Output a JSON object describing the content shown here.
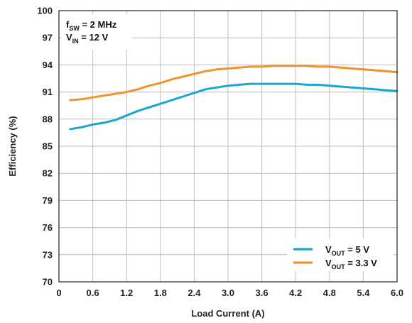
{
  "chart_data": {
    "type": "line",
    "xlabel": "Load Current (A)",
    "ylabel": "Efficiency (%)",
    "xlim": [
      0,
      6.0
    ],
    "ylim": [
      70,
      100
    ],
    "x_ticks": [
      "0",
      "0.6",
      "1.2",
      "1.8",
      "2.4",
      "3.0",
      "3.6",
      "4.2",
      "4.8",
      "5.4",
      "6.0"
    ],
    "y_ticks": [
      "70",
      "73",
      "76",
      "79",
      "82",
      "85",
      "88",
      "91",
      "94",
      "97",
      "100"
    ],
    "grid": true,
    "legend_position": "bottom-right",
    "annotations": {
      "fsw": {
        "main": "f",
        "sub": "SW",
        "rest": " = 2 MHz"
      },
      "vin": {
        "main": "V",
        "sub": "IN",
        "rest": " = 12 V"
      }
    },
    "series": [
      {
        "name": "V_OUT = 5 V",
        "legend": {
          "main": "V",
          "sub": "OUT",
          "rest": " = 5 V"
        },
        "color": "#1aa6d3",
        "x": [
          0.2,
          0.4,
          0.6,
          0.8,
          1.0,
          1.2,
          1.4,
          1.6,
          1.8,
          2.0,
          2.2,
          2.4,
          2.6,
          2.8,
          3.0,
          3.2,
          3.4,
          3.6,
          3.8,
          4.0,
          4.2,
          4.4,
          4.6,
          4.8,
          5.0,
          5.2,
          5.4,
          5.6,
          5.8,
          6.0
        ],
        "y": [
          86.9,
          87.1,
          87.4,
          87.6,
          87.9,
          88.4,
          88.9,
          89.3,
          89.7,
          90.1,
          90.5,
          90.9,
          91.3,
          91.5,
          91.7,
          91.8,
          91.9,
          91.9,
          91.9,
          91.9,
          91.9,
          91.8,
          91.8,
          91.7,
          91.6,
          91.5,
          91.4,
          91.3,
          91.2,
          91.1
        ]
      },
      {
        "name": "V_OUT = 3.3 V",
        "legend": {
          "main": "V",
          "sub": "OUT",
          "rest": " = 3.3 V"
        },
        "color": "#f0922e",
        "x": [
          0.2,
          0.4,
          0.6,
          0.8,
          1.0,
          1.2,
          1.4,
          1.6,
          1.8,
          2.0,
          2.2,
          2.4,
          2.6,
          2.8,
          3.0,
          3.2,
          3.4,
          3.6,
          3.8,
          4.0,
          4.2,
          4.4,
          4.6,
          4.8,
          5.0,
          5.2,
          5.4,
          5.6,
          5.8,
          6.0
        ],
        "y": [
          90.1,
          90.2,
          90.4,
          90.6,
          90.8,
          91.0,
          91.3,
          91.7,
          92.0,
          92.4,
          92.7,
          93.0,
          93.3,
          93.5,
          93.6,
          93.7,
          93.8,
          93.8,
          93.9,
          93.9,
          93.9,
          93.9,
          93.8,
          93.8,
          93.7,
          93.6,
          93.5,
          93.4,
          93.3,
          93.2
        ]
      }
    ]
  }
}
